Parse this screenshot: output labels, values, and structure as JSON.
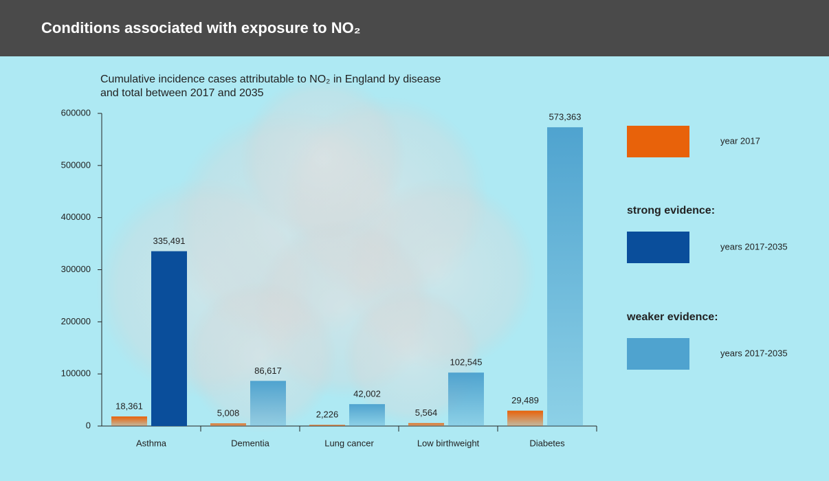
{
  "chart_data": {
    "type": "bar",
    "title": "Conditions associated with exposure to NO₂",
    "subtitle": "Cumulative incidence cases attributable to NO₂ in England by disease and total between 2017 and 2035",
    "categories": [
      "Asthma",
      "Dementia",
      "Lung cancer",
      "Low birthweight",
      "Diabetes"
    ],
    "series": [
      {
        "name": "year 2017",
        "color": "#e8620a",
        "values": [
          18361,
          5008,
          2226,
          5564,
          29489
        ],
        "value_labels": [
          "18,361",
          "5,008",
          "2,226",
          "5,564",
          "29,489"
        ]
      },
      {
        "name": "years 2017-2035",
        "group": "strong evidence:",
        "color": "#0a4e9b",
        "values": [
          335491,
          null,
          null,
          null,
          null
        ],
        "value_labels": [
          "335,491",
          null,
          null,
          null,
          null
        ]
      },
      {
        "name": "years 2017-2035",
        "group": "weaker evidence:",
        "color": "#4fa3cf",
        "values": [
          null,
          86617,
          42002,
          102545,
          573363
        ],
        "value_labels": [
          null,
          "86,617",
          "42,002",
          "102,545",
          "573,363"
        ]
      }
    ],
    "ylim": [
      0,
      600000
    ],
    "yticks": [
      0,
      100000,
      200000,
      300000,
      400000,
      500000,
      600000
    ]
  }
}
